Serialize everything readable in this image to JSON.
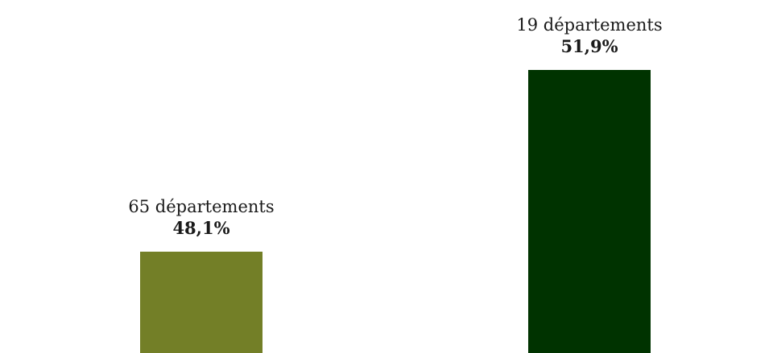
{
  "chart_data": {
    "type": "bar",
    "categories": [
      "65 départements",
      "19 départements"
    ],
    "values": [
      48.1,
      51.9
    ],
    "value_labels": [
      "48,1%",
      "51,9%"
    ],
    "colors": [
      "#737f27",
      "#003300"
    ],
    "title": "",
    "xlabel": "",
    "ylabel": "",
    "grid": false,
    "legend": "none"
  }
}
